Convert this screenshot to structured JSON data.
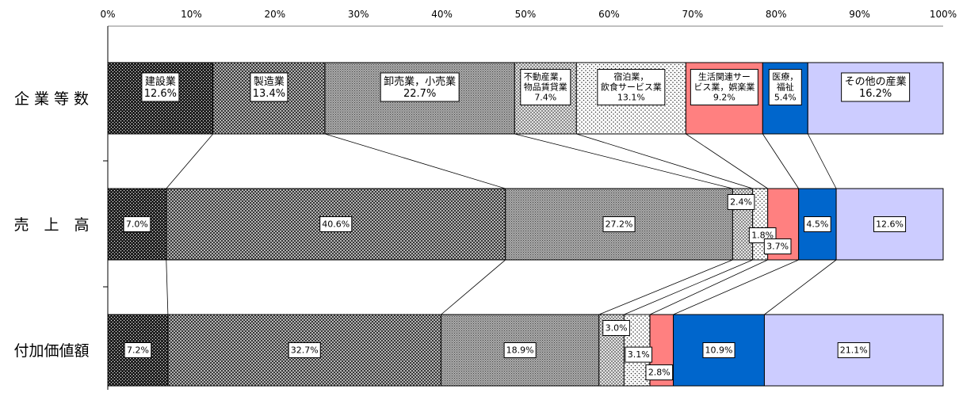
{
  "chart_data": {
    "type": "bar",
    "orientation": "horizontal",
    "stacked": "100%",
    "xlim": [
      0,
      100
    ],
    "x_ticks": [
      "0%",
      "10%",
      "20%",
      "30%",
      "40%",
      "50%",
      "60%",
      "70%",
      "80%",
      "90%",
      "100%"
    ],
    "categories": [
      "企業等数",
      "売上高",
      "付加価値額"
    ],
    "series": [
      {
        "name": "建設業",
        "legend_label": [
          "建設業"
        ],
        "values": [
          12.6,
          7.0,
          7.2
        ],
        "fill": "dense-black"
      },
      {
        "name": "製造業",
        "legend_label": [
          "製造業"
        ],
        "values": [
          13.4,
          40.6,
          32.7
        ],
        "fill": "cross-dark"
      },
      {
        "name": "卸売業，小売業",
        "legend_label": [
          "卸売業，小売業"
        ],
        "values": [
          22.7,
          27.2,
          18.9
        ],
        "fill": "fine-gray"
      },
      {
        "name": "不動産業，物品賃貸業",
        "legend_label": [
          "不動産業，",
          "物品賃貸業"
        ],
        "values": [
          7.4,
          2.4,
          3.0
        ],
        "fill": "cross-light"
      },
      {
        "name": "宿泊業，飲食サービス業",
        "legend_label": [
          "宿泊業，",
          "飲食サービス業"
        ],
        "values": [
          13.1,
          1.8,
          3.1
        ],
        "fill": "dots"
      },
      {
        "name": "生活関連サービス業，娯楽業",
        "legend_label": [
          "生活関連サー",
          "ビス業，娯楽業"
        ],
        "values": [
          9.2,
          3.7,
          2.8
        ],
        "color": "#ff8080"
      },
      {
        "name": "医療，福祉",
        "legend_label": [
          "医療，",
          "福祉"
        ],
        "values": [
          5.4,
          4.5,
          10.9
        ],
        "color": "#0066cc"
      },
      {
        "name": "その他の産業",
        "legend_label": [
          "その他の産業"
        ],
        "values": [
          16.2,
          12.6,
          21.1
        ],
        "color": "#ccccff"
      }
    ],
    "row_labels": [
      [
        "12.6%",
        "13.4%",
        "22.7%",
        "7.4%",
        "13.1%",
        "9.2%",
        "5.4%",
        "16.2%"
      ],
      [
        "7.0%",
        "40.6%",
        "27.2%",
        "2.4%",
        "1.8%",
        "3.7%",
        "4.5%",
        "12.6%"
      ],
      [
        "7.2%",
        "32.7%",
        "18.9%",
        "3.0%",
        "3.1%",
        "2.8%",
        "10.9%",
        "21.1%"
      ]
    ],
    "category_labels": [
      "企 業 等 数",
      "売　上　高",
      "付加価値額"
    ],
    "series_lines": true,
    "legend": "inside-top-bar"
  }
}
